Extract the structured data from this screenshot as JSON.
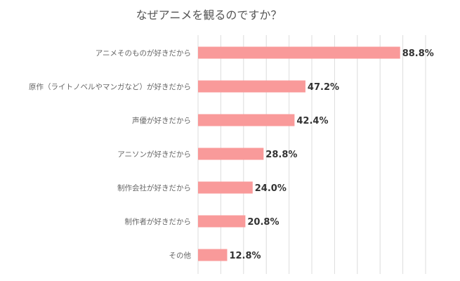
{
  "chart_data": {
    "type": "bar",
    "orientation": "horizontal",
    "title": "なぜアニメを観るのですか？",
    "categories": [
      "アニメそのものが好きだから",
      "原作（ライトノベルやマンガなど）が好きだから",
      "声優が好きだから",
      "アニソンが好きだから",
      "制作会社が好きだから",
      "制作者が好きだから",
      "その他"
    ],
    "values": [
      88.8,
      47.2,
      42.4,
      28.8,
      24.0,
      20.8,
      12.8
    ],
    "value_labels": [
      "88.8%",
      "47.2%",
      "42.4%",
      "28.8%",
      "24.0%",
      "20.8%",
      "12.8%"
    ],
    "xlim": [
      0,
      100
    ],
    "grid": true,
    "grid_interval": 10,
    "bar_color": "#f99a9a"
  }
}
